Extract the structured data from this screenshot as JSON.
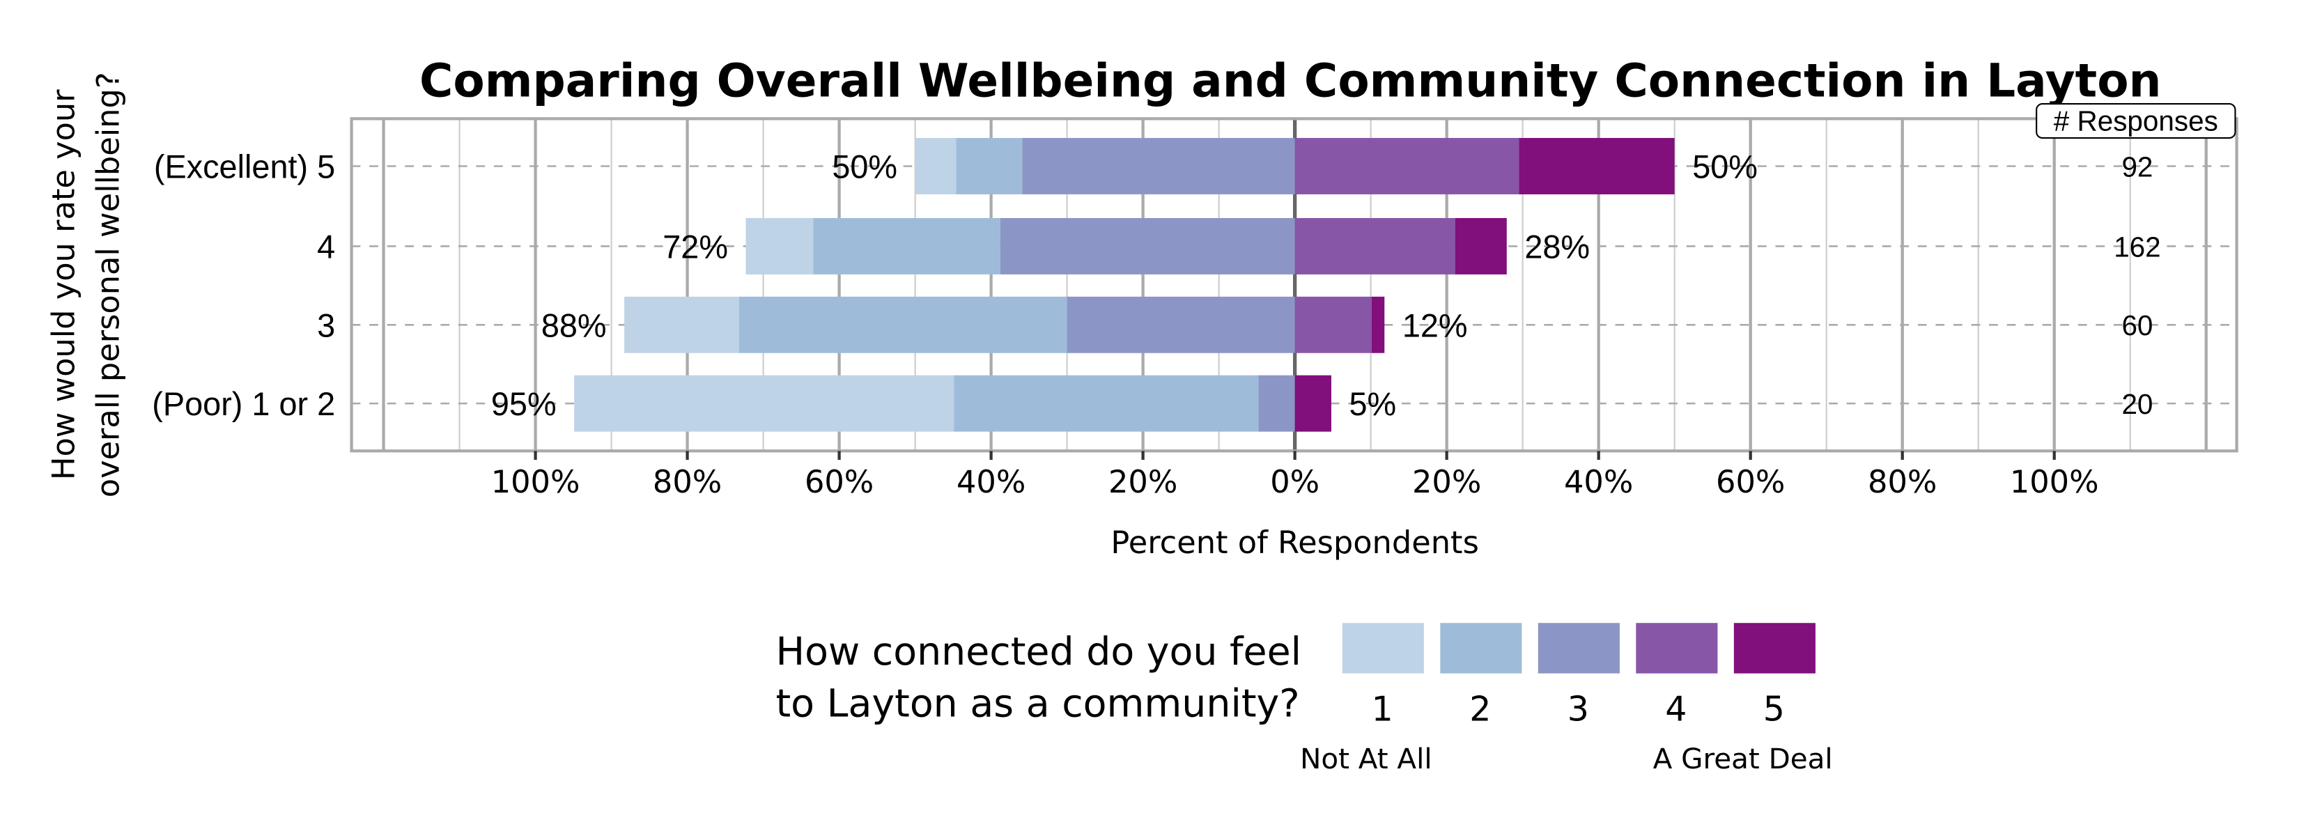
{
  "chart_data": {
    "type": "bar",
    "orientation": "horizontal-diverging",
    "title": "Comparing Overall Wellbeing and Community Connection in Layton",
    "xlabel": "Percent of Respondents",
    "ylabel_lines": [
      "How would you rate your",
      "overall personal wellbeing?"
    ],
    "xticks": [
      "100%",
      "80%",
      "60%",
      "40%",
      "20%",
      "0%",
      "20%",
      "40%",
      "60%",
      "80%",
      "100%"
    ],
    "xlim": [
      -100,
      100
    ],
    "grid": true,
    "categories": [
      "(Excellent) 5",
      "4",
      "3",
      "(Poor) 1 or 2"
    ],
    "series": [
      {
        "name": "1",
        "values": [
          5.4,
          8.9,
          15.1,
          50.0
        ]
      },
      {
        "name": "2",
        "values": [
          8.7,
          24.6,
          43.2,
          40.1
        ]
      },
      {
        "name": "3",
        "values": [
          35.9,
          38.8,
          30.0,
          4.8
        ]
      },
      {
        "name": "4",
        "values": [
          29.5,
          21.1,
          10.1,
          0
        ]
      },
      {
        "name": "5",
        "values": [
          20.5,
          6.8,
          1.7,
          4.8
        ]
      }
    ],
    "left_labels": [
      "50%",
      "72%",
      "88%",
      "95%"
    ],
    "right_labels": [
      "50%",
      "28%",
      "12%",
      "5%"
    ],
    "responses_header": "# Responses",
    "responses": [
      "92",
      "162",
      "60",
      "20"
    ],
    "colors": [
      "#bfd3e6",
      "#9ebcda",
      "#8c96c6",
      "#8856a7",
      "#810f7c"
    ],
    "legend": {
      "title_lines": [
        "How connected do you feel",
        "to Layton as a community?"
      ],
      "labels": [
        "1",
        "2",
        "3",
        "4",
        "5"
      ],
      "low_label": "Not At All",
      "high_label": "A Great Deal",
      "placement": "bottom"
    }
  }
}
